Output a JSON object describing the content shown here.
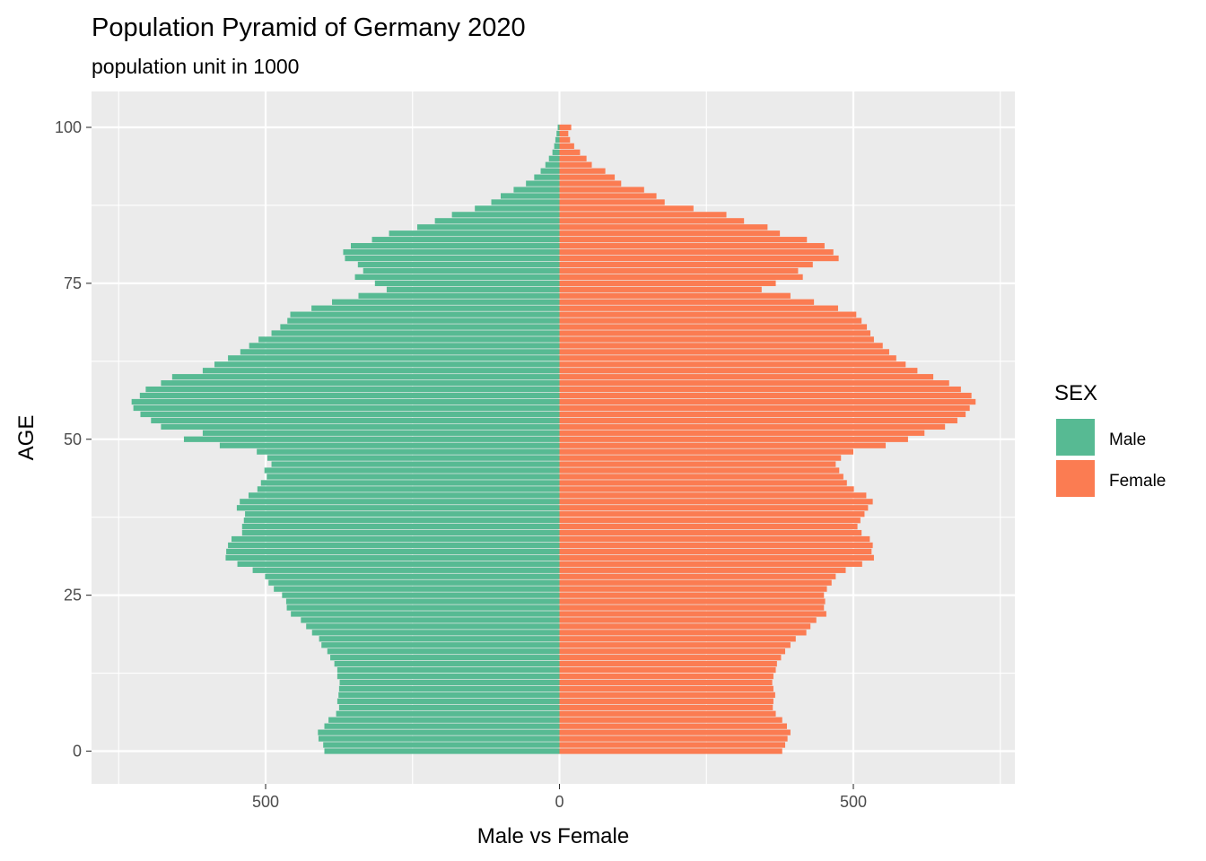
{
  "chart_data": {
    "type": "bar",
    "orientation": "horizontal",
    "title": "Population Pyramid of Germany 2020",
    "subtitle": "population unit in 1000",
    "xlabel": "Male vs Female",
    "ylabel": "AGE",
    "xlim": [
      -800,
      800
    ],
    "ylim": [
      -5,
      105
    ],
    "x_ticks": [
      -500,
      0,
      500
    ],
    "x_tick_labels": [
      "500",
      "0",
      "500"
    ],
    "y_ticks": [
      0,
      25,
      50,
      75,
      100
    ],
    "y_tick_labels": [
      "0",
      "25",
      "50",
      "75",
      "100"
    ],
    "grid": true,
    "legend": {
      "title": "SEX",
      "position": "right"
    },
    "ages": [
      0,
      1,
      2,
      3,
      4,
      5,
      6,
      7,
      8,
      9,
      10,
      11,
      12,
      13,
      14,
      15,
      16,
      17,
      18,
      19,
      20,
      21,
      22,
      23,
      24,
      25,
      26,
      27,
      28,
      29,
      30,
      31,
      32,
      33,
      34,
      35,
      36,
      37,
      38,
      39,
      40,
      41,
      42,
      43,
      44,
      45,
      46,
      47,
      48,
      49,
      50,
      51,
      52,
      53,
      54,
      55,
      56,
      57,
      58,
      59,
      60,
      61,
      62,
      63,
      64,
      65,
      66,
      67,
      68,
      69,
      70,
      71,
      72,
      73,
      74,
      75,
      76,
      77,
      78,
      79,
      80,
      81,
      82,
      83,
      84,
      85,
      86,
      87,
      88,
      89,
      90,
      91,
      92,
      93,
      94,
      95,
      96,
      97,
      98,
      99,
      100
    ],
    "series": [
      {
        "name": "Male",
        "color": "#57BA93",
        "values": [
          400,
          402,
          410,
          411,
          400,
          393,
          380,
          375,
          378,
          376,
          375,
          374,
          378,
          378,
          383,
          390,
          395,
          405,
          409,
          421,
          431,
          440,
          457,
          464,
          465,
          472,
          486,
          495,
          501,
          522,
          548,
          568,
          567,
          564,
          558,
          540,
          540,
          537,
          535,
          549,
          544,
          529,
          514,
          508,
          498,
          502,
          490,
          497,
          515,
          578,
          639,
          607,
          678,
          695,
          713,
          725,
          728,
          714,
          704,
          678,
          659,
          607,
          587,
          564,
          543,
          528,
          512,
          490,
          475,
          463,
          458,
          422,
          387,
          342,
          294,
          314,
          348,
          334,
          343,
          365,
          368,
          355,
          319,
          290,
          242,
          212,
          183,
          144,
          116,
          100,
          78,
          57,
          43,
          32,
          24,
          18,
          12,
          9,
          7,
          5,
          3
        ],
        "sign": -1
      },
      {
        "name": "Female",
        "color": "#FB7C52",
        "values": [
          379,
          384,
          388,
          393,
          387,
          379,
          368,
          363,
          364,
          367,
          364,
          362,
          364,
          368,
          370,
          377,
          384,
          393,
          402,
          420,
          427,
          437,
          454,
          450,
          452,
          450,
          455,
          463,
          470,
          487,
          515,
          535,
          531,
          533,
          528,
          514,
          507,
          512,
          519,
          525,
          533,
          522,
          501,
          489,
          483,
          476,
          470,
          479,
          500,
          555,
          593,
          621,
          656,
          677,
          691,
          698,
          708,
          701,
          683,
          663,
          636,
          609,
          589,
          573,
          561,
          550,
          535,
          529,
          523,
          514,
          505,
          474,
          433,
          393,
          344,
          368,
          414,
          406,
          431,
          475,
          466,
          451,
          421,
          375,
          354,
          314,
          284,
          228,
          179,
          165,
          144,
          105,
          94,
          78,
          55,
          46,
          35,
          25,
          18,
          15,
          20
        ],
        "sign": 1
      }
    ]
  }
}
